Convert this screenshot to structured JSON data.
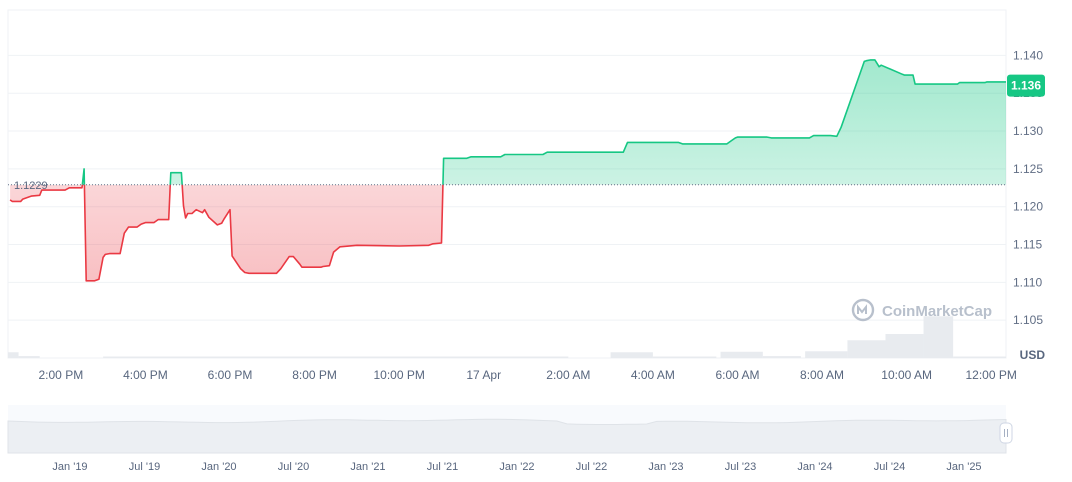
{
  "chart_data": {
    "type": "area",
    "currency": "USD",
    "baseline": {
      "value": 1.1229,
      "label": "1.1229"
    },
    "current": {
      "value": 1.136,
      "label": "1.136"
    },
    "ylim": [
      1.1,
      1.146
    ],
    "y_ticks": [
      "1.105",
      "1.110",
      "1.115",
      "1.120",
      "1.125",
      "1.130",
      "1.135",
      "1.140"
    ],
    "x_range_hours": [
      12.75,
      36.35
    ],
    "x_ticks": [
      {
        "label": "2:00 PM",
        "hour": 14
      },
      {
        "label": "4:00 PM",
        "hour": 16
      },
      {
        "label": "6:00 PM",
        "hour": 18
      },
      {
        "label": "8:00 PM",
        "hour": 20
      },
      {
        "label": "10:00 PM",
        "hour": 22
      },
      {
        "label": "17 Apr",
        "hour": 24
      },
      {
        "label": "2:00 AM",
        "hour": 26
      },
      {
        "label": "4:00 AM",
        "hour": 28
      },
      {
        "label": "6:00 AM",
        "hour": 30
      },
      {
        "label": "8:00 AM",
        "hour": 32
      },
      {
        "label": "10:00 AM",
        "hour": 34
      },
      {
        "label": "12:00 PM",
        "hour": 36
      }
    ],
    "series": [
      {
        "x_hours": [
          12.8,
          12.85,
          13.05,
          13.1,
          13.25,
          13.3,
          13.5,
          13.55,
          14.1,
          14.2,
          14.5,
          14.55,
          14.6,
          14.8,
          14.9,
          15.0,
          15.05,
          15.15,
          15.4,
          15.5,
          15.6,
          15.8,
          15.9,
          16.0,
          16.2,
          16.3,
          16.55,
          16.6,
          16.85,
          16.9,
          16.95,
          17.0,
          17.1,
          17.2,
          17.35,
          17.4,
          17.5,
          17.7,
          17.8,
          17.85,
          18.0,
          18.05,
          18.25,
          18.35,
          18.45,
          18.5,
          18.6,
          19.1,
          19.2,
          19.4,
          19.5,
          19.65,
          19.7,
          20.15,
          20.2,
          20.35,
          20.45,
          20.6,
          21.0,
          22.0,
          22.7,
          22.8,
          23.0,
          23.05,
          23.6,
          23.7,
          24.4,
          24.5,
          25.4,
          25.5,
          27.3,
          27.4,
          28.6,
          28.7,
          29.75,
          29.85,
          29.95,
          30.0,
          30.7,
          30.8,
          31.7,
          31.8,
          32.2,
          32.35,
          32.45,
          33.0,
          33.05,
          33.15,
          33.25,
          33.35,
          33.4,
          33.9,
          33.95,
          34.15,
          34.2,
          35.2,
          35.25,
          35.85,
          35.9,
          36.35
        ],
        "values": [
          1.1209,
          1.1207,
          1.1207,
          1.121,
          1.1213,
          1.1214,
          1.1215,
          1.1222,
          1.1222,
          1.1225,
          1.1225,
          1.125,
          1.1102,
          1.1102,
          1.1104,
          1.1133,
          1.1137,
          1.1138,
          1.1138,
          1.1165,
          1.1173,
          1.1173,
          1.1177,
          1.1179,
          1.1179,
          1.1183,
          1.1183,
          1.1245,
          1.1245,
          1.1201,
          1.1185,
          1.1191,
          1.1191,
          1.1196,
          1.1192,
          1.1196,
          1.1186,
          1.1176,
          1.1178,
          1.1183,
          1.1196,
          1.1135,
          1.1118,
          1.1113,
          1.1112,
          1.1112,
          1.1112,
          1.1112,
          1.1118,
          1.1134,
          1.1134,
          1.1124,
          1.112,
          1.112,
          1.1121,
          1.1122,
          1.114,
          1.1147,
          1.1149,
          1.1148,
          1.1149,
          1.1151,
          1.1152,
          1.1264,
          1.1264,
          1.1266,
          1.1266,
          1.1269,
          1.1269,
          1.1272,
          1.1272,
          1.1285,
          1.1285,
          1.1283,
          1.1283,
          1.1287,
          1.1291,
          1.1292,
          1.1292,
          1.1291,
          1.1291,
          1.1294,
          1.1294,
          1.1293,
          1.1305,
          1.1392,
          1.1393,
          1.1394,
          1.1394,
          1.1385,
          1.1387,
          1.1375,
          1.1374,
          1.1374,
          1.1362,
          1.1362,
          1.1364,
          1.1364,
          1.1365,
          1.1365
        ]
      }
    ],
    "volume_bars": [
      {
        "x_hours": [
          12.75,
          13.0
        ],
        "rel": 0.12
      },
      {
        "x_hours": [
          13.0,
          13.5
        ],
        "rel": 0.04
      },
      {
        "x_hours": [
          15.0,
          26.0
        ],
        "rel": 0.025
      },
      {
        "x_hours": [
          27.0,
          28.0
        ],
        "rel": 0.12
      },
      {
        "x_hours": [
          28.0,
          29.5
        ],
        "rel": 0.03
      },
      {
        "x_hours": [
          29.6,
          30.6
        ],
        "rel": 0.13
      },
      {
        "x_hours": [
          30.6,
          31.5
        ],
        "rel": 0.04
      },
      {
        "x_hours": [
          31.6,
          32.6
        ],
        "rel": 0.14
      },
      {
        "x_hours": [
          32.6,
          33.5
        ],
        "rel": 0.37
      },
      {
        "x_hours": [
          33.5,
          34.4
        ],
        "rel": 0.5
      },
      {
        "x_hours": [
          34.4,
          35.1
        ],
        "rel": 0.87
      },
      {
        "x_hours": [
          35.1,
          36.35
        ],
        "rel": 0.02
      }
    ],
    "navigator": {
      "ticks": [
        "Jan '19",
        "Jul '19",
        "Jan '20",
        "Jul '20",
        "Jan '21",
        "Jul '21",
        "Jan '22",
        "Jul '22",
        "Jan '23",
        "Jul '23",
        "Jan '24",
        "Jul '24",
        "Jan '25"
      ]
    },
    "colors": {
      "up": "#16c784",
      "down": "#ea3943",
      "up_fill": "#c6f2de",
      "down_fill": "#f7c5c8",
      "grid": "#eff2f5",
      "volume": "#e8ebef",
      "navigator_fill": "#eceff3"
    },
    "watermark": "CoinMarketCap"
  }
}
